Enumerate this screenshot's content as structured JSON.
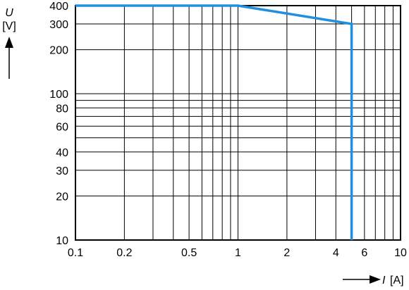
{
  "chart_data": {
    "type": "line",
    "x_scale": "log",
    "y_scale": "log",
    "xlim": [
      0.1,
      10
    ],
    "ylim": [
      10,
      400
    ],
    "x_ticks": [
      0.1,
      0.2,
      0.5,
      1,
      2,
      4,
      6,
      10
    ],
    "x_tick_labels": [
      "0.1",
      "0.2",
      "0.5",
      "1",
      "2",
      "4",
      "6",
      "10"
    ],
    "y_ticks": [
      10,
      20,
      30,
      40,
      60,
      80,
      100,
      200,
      300,
      400
    ],
    "y_tick_labels": [
      "10",
      "20",
      "30",
      "40",
      "60",
      "80",
      "100",
      "200",
      "300",
      "400"
    ],
    "x_gridlines": [
      0.1,
      0.2,
      0.3,
      0.4,
      0.5,
      0.6,
      0.7,
      0.8,
      0.9,
      1,
      2,
      3,
      4,
      5,
      6,
      7,
      8,
      9,
      10
    ],
    "y_gridlines": [
      10,
      20,
      30,
      40,
      50,
      60,
      70,
      80,
      90,
      100,
      200,
      300,
      400
    ],
    "grid": true,
    "xlabel_var": "I",
    "xlabel_unit": "[A]",
    "ylabel_var": "U",
    "ylabel_unit": "[V]",
    "series": [
      {
        "color": "#1f8fe0",
        "points": [
          [
            0.1,
            400
          ],
          [
            1.0,
            400
          ],
          [
            5.0,
            300
          ],
          [
            5.0,
            10
          ]
        ]
      }
    ]
  }
}
